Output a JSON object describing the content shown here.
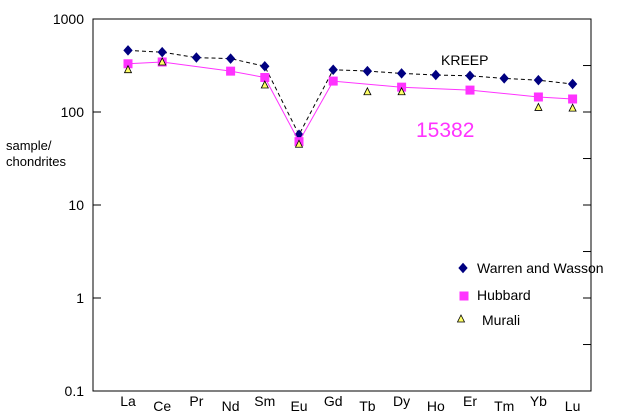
{
  "chart_data": {
    "type": "line",
    "yscale": "log",
    "ylim": [
      0.1,
      1000
    ],
    "ylabel_lines": [
      "sample/",
      "chondrites"
    ],
    "ytick_labels": [
      "0.1",
      "1",
      "10",
      "100",
      "1000"
    ],
    "categories": [
      "La",
      "Ce",
      "Pr",
      "Nd",
      "Sm",
      "Eu",
      "Gd",
      "Tb",
      "Dy",
      "Ho",
      "Er",
      "Tm",
      "Yb",
      "Lu"
    ],
    "annotations": [
      {
        "text": "KREEP",
        "color": "#000000"
      },
      {
        "text": "15382",
        "color": "#ff33ff"
      }
    ],
    "series": [
      {
        "name": "Warren and Wasson",
        "marker": "diamond",
        "line": "dashed",
        "color": "#000080",
        "line_color": "#000000",
        "values": [
          460,
          440,
          385,
          375,
          310,
          57,
          285,
          275,
          260,
          250,
          245,
          230,
          220,
          200
        ]
      },
      {
        "name": "Hubbard",
        "marker": "square",
        "line": "solid",
        "color": "#ff33ff",
        "line_color": "#ff33ff",
        "values": [
          330,
          345,
          null,
          275,
          235,
          48,
          215,
          null,
          185,
          null,
          172,
          null,
          145,
          138
        ]
      },
      {
        "name": "Murali",
        "marker": "triangle",
        "line": "none",
        "color": "#ffff66",
        "line_color": "#000000",
        "values": [
          285,
          345,
          null,
          null,
          195,
          45,
          null,
          165,
          165,
          null,
          null,
          null,
          112,
          110
        ]
      }
    ],
    "legend_position": "bottom-right",
    "grid": false
  }
}
